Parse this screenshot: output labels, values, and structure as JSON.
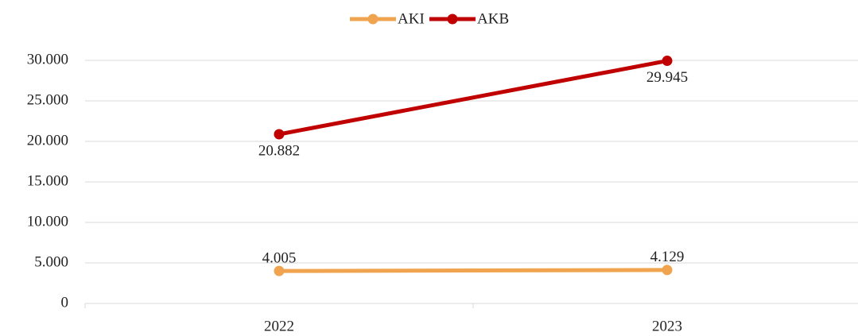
{
  "chart_data": {
    "type": "line",
    "categories": [
      "2022",
      "2023"
    ],
    "series": [
      {
        "name": "AKI",
        "color": "#f0a44f",
        "values": [
          4005,
          4129
        ],
        "value_labels": [
          "4.005",
          "4.129"
        ]
      },
      {
        "name": "AKB",
        "color": "#c00000",
        "values": [
          20882,
          29945
        ],
        "value_labels": [
          "20.882",
          "29.945"
        ]
      }
    ],
    "ylim": [
      0,
      30000
    ],
    "yticks": [
      0,
      {
        "value": 5000,
        "label": "5.000"
      },
      {
        "value": 10000,
        "label": "10.000"
      },
      {
        "value": 15000,
        "label": "15.000"
      },
      {
        "value": 20000,
        "label": "20.000"
      },
      {
        "value": 25000,
        "label": "25.000"
      },
      {
        "value": 30000,
        "label": "30.000"
      }
    ],
    "grid": true,
    "legend": "top"
  }
}
